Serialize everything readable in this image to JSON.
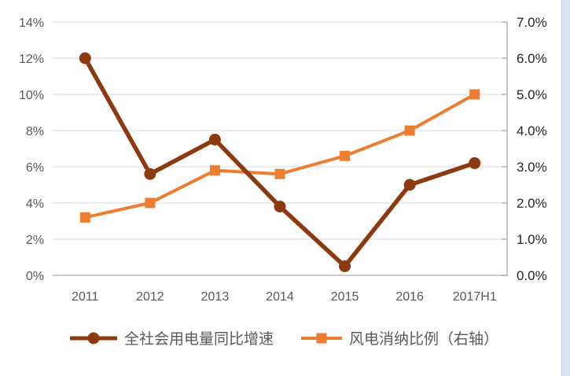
{
  "chart_data": {
    "type": "line",
    "title": "",
    "categories": [
      "2011",
      "2012",
      "2013",
      "2014",
      "2015",
      "2016",
      "2017H1"
    ],
    "series": [
      {
        "name": "全社会用电量同比增速",
        "axis": "left",
        "marker": "circle",
        "color": "#8E3A10",
        "values": [
          12.0,
          5.6,
          7.5,
          3.8,
          0.5,
          5.0,
          6.2
        ]
      },
      {
        "name": "风电消纳比例（右轴）",
        "axis": "right",
        "marker": "square",
        "color": "#ED7D31",
        "values": [
          1.6,
          2.0,
          2.9,
          2.8,
          3.3,
          4.0,
          5.0
        ]
      }
    ],
    "left_axis": {
      "min": 0,
      "max": 14,
      "step": 2,
      "tick_labels_top_to_bottom": [
        "14%",
        "12%",
        "10%",
        "8%",
        "6%",
        "4%",
        "2%",
        "0%"
      ]
    },
    "right_axis": {
      "min": 0,
      "max": 7,
      "step": 1,
      "tick_labels_top_to_bottom": [
        "7.0%",
        "6.0%",
        "5.0%",
        "4.0%",
        "3.0%",
        "2.0%",
        "1.0%",
        "0.0%"
      ]
    },
    "grid": true,
    "legend_position": "bottom"
  },
  "colors": {
    "background": "#FFFFFF",
    "grid": "#D9D9D9",
    "bottom_axis": "#BBBBBB",
    "right_axis_line": "#A8A8A8",
    "tick_label_left": "#595959",
    "tick_label_right": "#262626",
    "tick_label_x": "#595959",
    "legend_text": "#595959",
    "page_edge_strip": "#D9E3EF"
  }
}
